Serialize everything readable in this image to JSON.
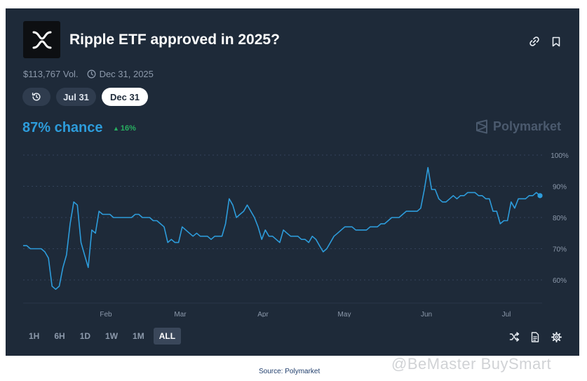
{
  "market": {
    "title": "Ripple ETF approved in 2025?",
    "volume": "$113,767 Vol.",
    "end_date": "Dec 31, 2025",
    "chance": "87% chance",
    "delta": "16%",
    "brand": "Polymarket"
  },
  "date_pills": [
    {
      "label": "",
      "icon": "history-icon"
    },
    {
      "label": "Jul 31"
    },
    {
      "label": "Dec 31",
      "active": true
    }
  ],
  "time_ranges": [
    "1H",
    "6H",
    "1D",
    "1W",
    "1M",
    "ALL"
  ],
  "active_range": "ALL",
  "toolbar_icons": [
    "link-icon",
    "bookmark-icon",
    "shuffle-icon",
    "document-icon",
    "gear-icon"
  ],
  "source": "Source: Polymarket",
  "watermark": "@BeMaster BuySmart",
  "colors": {
    "background": "#1e2a39",
    "line": "#2d9cdb",
    "positive": "#27ae60",
    "grid": "#34425a",
    "axis_text": "#8c99ab"
  },
  "chart_data": {
    "type": "line",
    "x_ticks": [
      "Feb",
      "Mar",
      "Apr",
      "May",
      "Jun",
      "Jul"
    ],
    "y_ticks": [
      "100%",
      "90%",
      "80%",
      "70%",
      "60%"
    ],
    "ylim": [
      55,
      100
    ],
    "grid": "horizontal dashed",
    "series": [
      {
        "values": [
          71,
          71,
          70,
          70,
          70,
          70,
          69,
          67,
          58,
          57,
          58,
          64,
          68,
          78,
          85,
          84,
          72,
          68,
          64,
          76,
          75,
          82,
          81,
          81,
          81,
          80,
          80,
          80,
          80,
          80,
          80,
          81,
          81,
          80,
          80,
          80,
          79,
          79,
          78,
          77,
          72,
          73,
          72,
          72,
          77,
          76,
          75,
          74,
          75,
          74,
          74,
          74,
          73,
          74,
          74,
          74,
          78,
          86,
          84,
          80,
          81,
          82,
          84,
          82,
          80,
          77,
          73,
          76,
          74,
          74,
          73,
          72,
          76,
          75,
          74,
          74,
          74,
          73,
          73,
          72,
          74,
          73,
          71,
          69,
          70,
          72,
          74,
          75,
          76,
          77,
          77,
          77,
          76,
          76,
          76,
          76,
          77,
          77,
          77,
          78,
          78,
          79,
          80,
          80,
          80,
          81,
          82,
          82,
          82,
          82,
          83,
          89,
          96,
          89,
          89,
          86,
          85,
          85,
          86,
          87,
          86,
          87,
          87,
          88,
          88,
          88,
          87,
          87,
          86,
          86,
          82,
          82,
          78,
          79,
          79,
          85,
          83,
          86,
          86,
          86,
          87,
          87,
          88,
          87
        ]
      }
    ]
  }
}
